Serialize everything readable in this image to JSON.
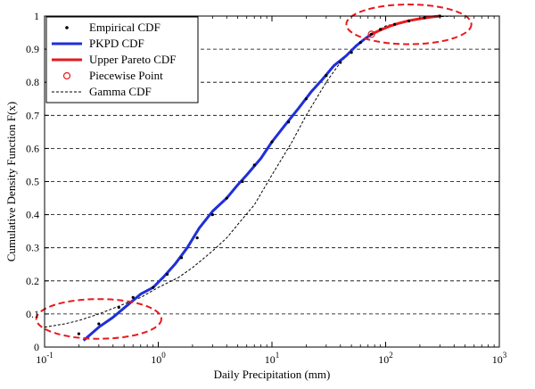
{
  "chart_data": {
    "type": "line",
    "x_scale": "log",
    "xlim": [
      0.1,
      1000
    ],
    "ylim": [
      0,
      1
    ],
    "grid": {
      "x": false,
      "y": true,
      "style": "dashed"
    },
    "legend_position": "top-left",
    "xlabel": "Daily Precipitation (mm)",
    "ylabel": "Cumulative Density Function F(x)",
    "x_ticks": [
      {
        "value": 0.1,
        "base": "10",
        "exp": "-1"
      },
      {
        "value": 1,
        "base": "10",
        "exp": "0"
      },
      {
        "value": 10,
        "base": "10",
        "exp": "1"
      },
      {
        "value": 100,
        "base": "10",
        "exp": "2"
      },
      {
        "value": 1000,
        "base": "10",
        "exp": "3"
      }
    ],
    "y_ticks": [
      "0",
      "0.1",
      "0.2",
      "0.3",
      "0.4",
      "0.5",
      "0.6",
      "0.7",
      "0.8",
      "0.9",
      "1"
    ],
    "series": [
      {
        "name": "Empirical CDF",
        "style": "points",
        "color": "#000000",
        "x": [
          0.2,
          0.3,
          0.45,
          0.6,
          0.9,
          1.2,
          1.6,
          2.2,
          3,
          4,
          5.5,
          7,
          10,
          14,
          20,
          30,
          40,
          50,
          60,
          75,
          90,
          120,
          160,
          220,
          300
        ],
        "y": [
          0.04,
          0.07,
          0.12,
          0.15,
          0.18,
          0.22,
          0.27,
          0.33,
          0.4,
          0.45,
          0.5,
          0.55,
          0.62,
          0.68,
          0.75,
          0.82,
          0.86,
          0.89,
          0.92,
          0.945,
          0.96,
          0.975,
          0.985,
          0.995,
          1.0
        ]
      },
      {
        "name": "PKPD CDF",
        "style": "solid",
        "color": "#1f2fd8",
        "x": [
          0.22,
          0.3,
          0.4,
          0.55,
          0.7,
          0.9,
          1.1,
          1.4,
          1.8,
          2.3,
          3,
          4,
          5,
          6,
          8,
          10,
          13,
          17,
          22,
          28,
          35,
          45,
          55,
          65,
          75
        ],
        "y": [
          0.02,
          0.06,
          0.09,
          0.13,
          0.16,
          0.18,
          0.21,
          0.25,
          0.3,
          0.36,
          0.41,
          0.45,
          0.49,
          0.52,
          0.57,
          0.62,
          0.67,
          0.72,
          0.77,
          0.81,
          0.85,
          0.88,
          0.91,
          0.93,
          0.945
        ]
      },
      {
        "name": "Upper Pareto CDF",
        "style": "solid",
        "color": "#e8191d",
        "x": [
          75,
          90,
          110,
          130,
          160,
          200,
          250,
          300
        ],
        "y": [
          0.945,
          0.958,
          0.97,
          0.978,
          0.986,
          0.992,
          0.997,
          1.0
        ]
      },
      {
        "name": "Piecewise Point",
        "style": "circle",
        "color": "#e8191d",
        "x": [
          75
        ],
        "y": [
          0.945
        ]
      },
      {
        "name": "Gamma CDF",
        "style": "dashed",
        "color": "#000000",
        "x": [
          0.1,
          0.15,
          0.2,
          0.3,
          0.5,
          0.7,
          1,
          1.5,
          2,
          3,
          4,
          5,
          7,
          10,
          15,
          20,
          30,
          40,
          60,
          80,
          100,
          150,
          200,
          300,
          400
        ],
        "y": [
          0.06,
          0.07,
          0.08,
          0.1,
          0.13,
          0.15,
          0.18,
          0.21,
          0.24,
          0.29,
          0.33,
          0.37,
          0.43,
          0.52,
          0.62,
          0.7,
          0.8,
          0.86,
          0.92,
          0.95,
          0.97,
          0.985,
          0.993,
          0.998,
          1.0
        ]
      }
    ],
    "annotations": [
      {
        "type": "dashed-ellipse",
        "color": "#e8191d",
        "cx": 0.3,
        "cy": 0.085,
        "rx_decades": 0.55,
        "ry": 0.06
      },
      {
        "type": "dashed-ellipse",
        "color": "#e8191d",
        "cx": 160,
        "cy": 0.975,
        "rx_decades": 0.55,
        "ry": 0.06
      }
    ]
  }
}
